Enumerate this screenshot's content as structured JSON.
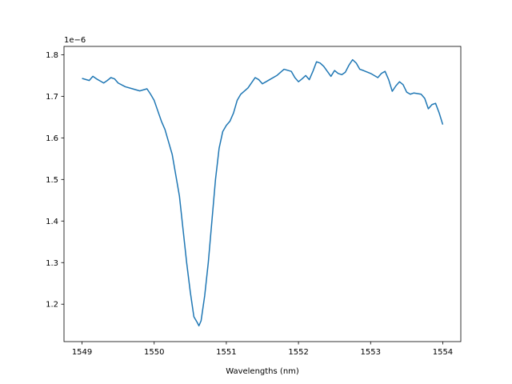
{
  "chart_data": {
    "type": "line",
    "title": "",
    "xlabel": "Wavelengths (nm)",
    "ylabel": "",
    "y_offset_label": "1e−6",
    "xlim": [
      1548.75,
      1554.25
    ],
    "ylim": [
      1.11,
      1.82
    ],
    "x_ticks": [
      1549,
      1550,
      1551,
      1552,
      1553,
      1554
    ],
    "x_tick_labels": [
      "1549",
      "1550",
      "1551",
      "1552",
      "1553",
      "1554"
    ],
    "y_ticks": [
      1.2,
      1.3,
      1.4,
      1.5,
      1.6,
      1.7,
      1.8
    ],
    "y_tick_labels": [
      "1.2",
      "1.3",
      "1.4",
      "1.5",
      "1.6",
      "1.7",
      "1.8"
    ],
    "grid": false,
    "legend": "none",
    "series": [
      {
        "color": "#1f77b4",
        "x": [
          1549.0,
          1549.1,
          1549.15,
          1549.2,
          1549.3,
          1549.35,
          1549.4,
          1549.45,
          1549.5,
          1549.6,
          1549.7,
          1549.8,
          1549.9,
          1549.95,
          1550.0,
          1550.05,
          1550.1,
          1550.15,
          1550.2,
          1550.25,
          1550.3,
          1550.35,
          1550.4,
          1550.45,
          1550.5,
          1550.55,
          1550.6,
          1550.62,
          1550.65,
          1550.7,
          1550.75,
          1550.8,
          1550.85,
          1550.9,
          1550.95,
          1551.0,
          1551.05,
          1551.1,
          1551.15,
          1551.2,
          1551.3,
          1551.4,
          1551.45,
          1551.5,
          1551.55,
          1551.6,
          1551.7,
          1551.8,
          1551.9,
          1551.95,
          1552.0,
          1552.05,
          1552.1,
          1552.15,
          1552.2,
          1552.25,
          1552.3,
          1552.35,
          1552.4,
          1552.45,
          1552.5,
          1552.55,
          1552.6,
          1552.65,
          1552.7,
          1552.75,
          1552.8,
          1552.85,
          1552.9,
          1553.0,
          1553.1,
          1553.15,
          1553.2,
          1553.25,
          1553.3,
          1553.35,
          1553.4,
          1553.45,
          1553.5,
          1553.55,
          1553.6,
          1553.7,
          1553.75,
          1553.8,
          1553.85,
          1553.9,
          1553.95,
          1554.0
        ],
        "y": [
          1.743,
          1.738,
          1.748,
          1.742,
          1.732,
          1.738,
          1.745,
          1.742,
          1.732,
          1.723,
          1.718,
          1.713,
          1.718,
          1.705,
          1.69,
          1.665,
          1.64,
          1.62,
          1.59,
          1.56,
          1.51,
          1.46,
          1.38,
          1.3,
          1.23,
          1.17,
          1.155,
          1.148,
          1.16,
          1.22,
          1.3,
          1.4,
          1.5,
          1.575,
          1.615,
          1.63,
          1.64,
          1.66,
          1.69,
          1.705,
          1.72,
          1.745,
          1.74,
          1.73,
          1.735,
          1.74,
          1.75,
          1.765,
          1.76,
          1.745,
          1.735,
          1.742,
          1.75,
          1.74,
          1.76,
          1.783,
          1.78,
          1.772,
          1.76,
          1.748,
          1.762,
          1.755,
          1.752,
          1.758,
          1.775,
          1.788,
          1.78,
          1.765,
          1.762,
          1.755,
          1.745,
          1.755,
          1.76,
          1.74,
          1.712,
          1.725,
          1.735,
          1.728,
          1.71,
          1.705,
          1.708,
          1.705,
          1.695,
          1.67,
          1.68,
          1.683,
          1.66,
          1.632
        ]
      }
    ]
  }
}
